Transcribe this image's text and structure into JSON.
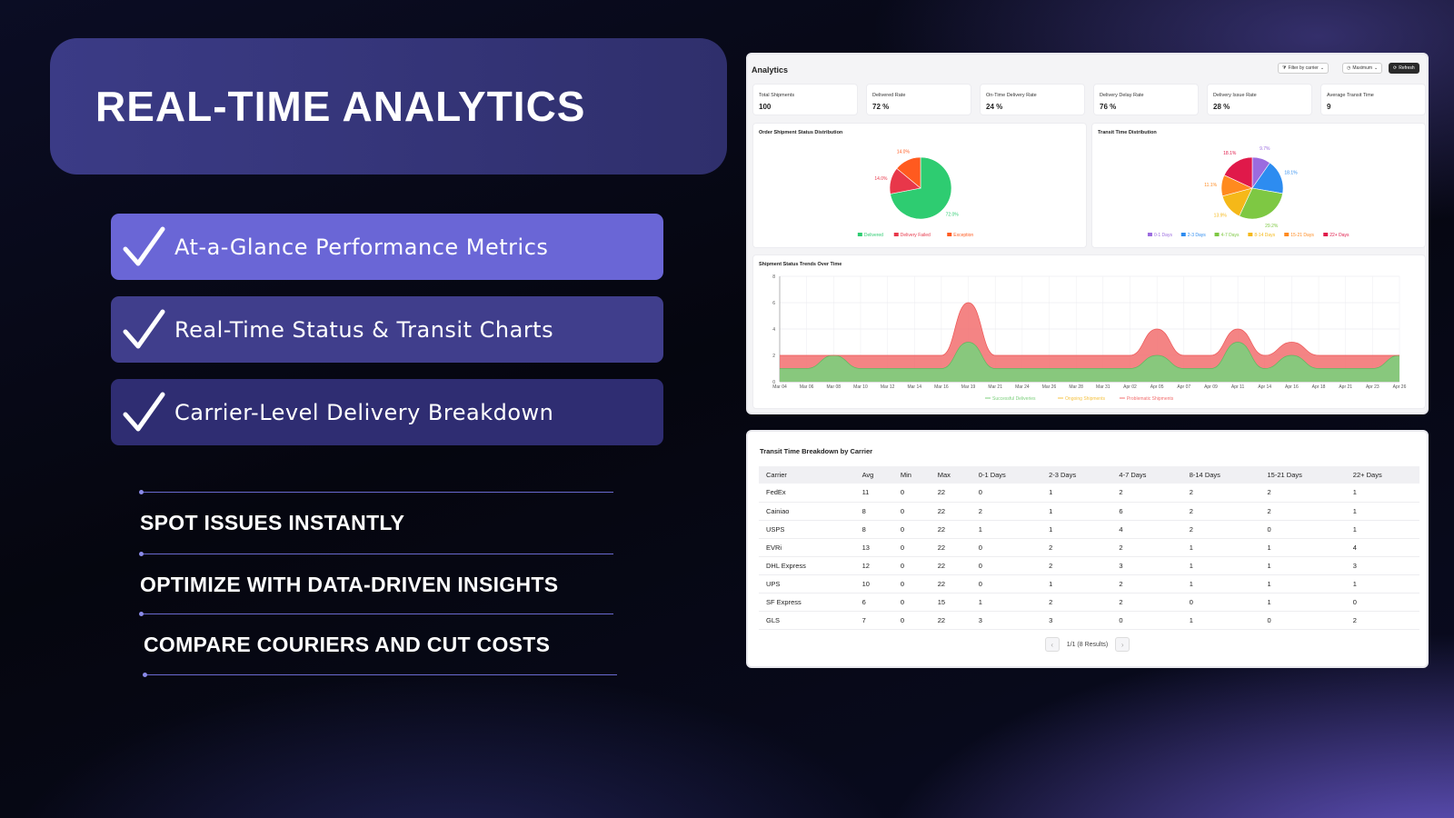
{
  "hero": {
    "title": "REAL-TIME ANALYTICS"
  },
  "features": [
    {
      "label": "At-a-Glance Performance Metrics"
    },
    {
      "label": "Real-Time Status & Transit Charts"
    },
    {
      "label": "Carrier-Level Delivery Breakdown"
    }
  ],
  "benefits": [
    {
      "label": "SPOT ISSUES INSTANTLY"
    },
    {
      "label": "OPTIMIZE WITH DATA-DRIVEN INSIGHTS"
    },
    {
      "label": "COMPARE COURIERS AND CUT COSTS"
    }
  ],
  "analytics": {
    "title": "Analytics",
    "filter_label": "Filter by carrier",
    "range_label": "Maximum",
    "refresh_label": "Refresh",
    "kpis": [
      {
        "label": "Total Shipments",
        "value": "100"
      },
      {
        "label": "Delivered Rate",
        "value": "72 %"
      },
      {
        "label": "On-Time Delivery Rate",
        "value": "24 %"
      },
      {
        "label": "Delivery Delay Rate",
        "value": "76 %"
      },
      {
        "label": "Delivery Issue Rate",
        "value": "28 %"
      },
      {
        "label": "Average Transit Time",
        "value": "9"
      }
    ]
  },
  "colors": {
    "delivered": "#2ecc71",
    "delivery_failed": "#e8374a",
    "exception": "#ff5a1f",
    "d0_1": "#9b6bdf",
    "d2_3": "#2d8cf0",
    "d4_7": "#7ec843",
    "d8_14": "#f5b819",
    "d15_21": "#ff8a1f",
    "d22": "#e0194a",
    "successful": "#7ccf7c",
    "problematic": "#f26f6f",
    "ongoing": "#f5c242"
  },
  "chart_data": [
    {
      "type": "pie",
      "title": "Order Shipment Status Distribution",
      "labels": [
        "Delivered",
        "Delivery Failed",
        "Exception"
      ],
      "values": [
        72.0,
        14.0,
        14.0
      ],
      "value_labels": [
        "72.0%",
        "14.0%",
        "14.0%"
      ],
      "legend": "bottom"
    },
    {
      "type": "pie",
      "title": "Transit Time Distribution",
      "labels": [
        "0-1 Days",
        "2-3 Days",
        "4-7 Days",
        "8-14 Days",
        "15-21 Days",
        "22+ Days"
      ],
      "values": [
        9.7,
        18.1,
        29.2,
        13.9,
        11.1,
        18.1
      ],
      "value_labels": [
        "9.7%",
        "18.1%",
        "29.2%",
        "13.9%",
        "11.1%",
        "18.1%"
      ],
      "legend": "bottom"
    },
    {
      "type": "area",
      "title": "Shipment Status Trends Over Time",
      "x_ticks": [
        "Mar 04",
        "Mar 06",
        "Mar 08",
        "Mar 10",
        "Mar 12",
        "Mar 14",
        "Mar 16",
        "Mar 19",
        "Mar 21",
        "Mar 24",
        "Mar 26",
        "Mar 28",
        "Mar 31",
        "Apr 02",
        "Apr 05",
        "Apr 07",
        "Apr 09",
        "Apr 11",
        "Apr 14",
        "Apr 16",
        "Apr 18",
        "Apr 21",
        "Apr 23",
        "Apr 26"
      ],
      "y_ticks": [
        "0",
        "2",
        "4",
        "6",
        "8"
      ],
      "ylim": [
        0,
        8
      ],
      "series": [
        {
          "name": "Successful Deliveries",
          "values": [
            1,
            1,
            2,
            1,
            1,
            1,
            1,
            3,
            1,
            1,
            1,
            1,
            1,
            1,
            2,
            1,
            1,
            3,
            1,
            2,
            1,
            1,
            1,
            2
          ]
        },
        {
          "name": "Ongoing Shipments",
          "values": [
            0,
            0,
            0,
            0,
            0,
            0,
            0,
            0,
            0,
            0,
            0,
            0,
            0,
            0,
            0,
            0,
            0,
            0,
            0,
            0,
            0,
            0,
            0,
            0
          ]
        },
        {
          "name": "Problematic Shipments",
          "values": [
            1,
            1,
            0,
            1,
            1,
            1,
            1,
            3,
            1,
            1,
            1,
            1,
            1,
            1,
            2,
            1,
            1,
            1,
            1,
            1,
            1,
            1,
            1,
            0
          ]
        }
      ],
      "legend": "bottom"
    },
    {
      "type": "table",
      "title": "Transit Time Breakdown by Carrier",
      "columns": [
        "Carrier",
        "Avg",
        "Min",
        "Max",
        "0-1 Days",
        "2-3 Days",
        "4-7 Days",
        "8-14 Days",
        "15-21 Days",
        "22+ Days"
      ],
      "rows": [
        [
          "FedEx",
          "11",
          "0",
          "22",
          "0",
          "1",
          "2",
          "2",
          "2",
          "1"
        ],
        [
          "Cainiao",
          "8",
          "0",
          "22",
          "2",
          "1",
          "6",
          "2",
          "2",
          "1"
        ],
        [
          "USPS",
          "8",
          "0",
          "22",
          "1",
          "1",
          "4",
          "2",
          "0",
          "1"
        ],
        [
          "EVRi",
          "13",
          "0",
          "22",
          "0",
          "2",
          "2",
          "1",
          "1",
          "4"
        ],
        [
          "DHL Express",
          "12",
          "0",
          "22",
          "0",
          "2",
          "3",
          "1",
          "1",
          "3"
        ],
        [
          "UPS",
          "10",
          "0",
          "22",
          "0",
          "1",
          "2",
          "1",
          "1",
          "1"
        ],
        [
          "SF Express",
          "6",
          "0",
          "15",
          "1",
          "2",
          "2",
          "0",
          "1",
          "0"
        ],
        [
          "GLS",
          "7",
          "0",
          "22",
          "3",
          "3",
          "0",
          "1",
          "0",
          "2"
        ]
      ]
    }
  ],
  "pager": {
    "text": "1/1 (8 Results)"
  }
}
